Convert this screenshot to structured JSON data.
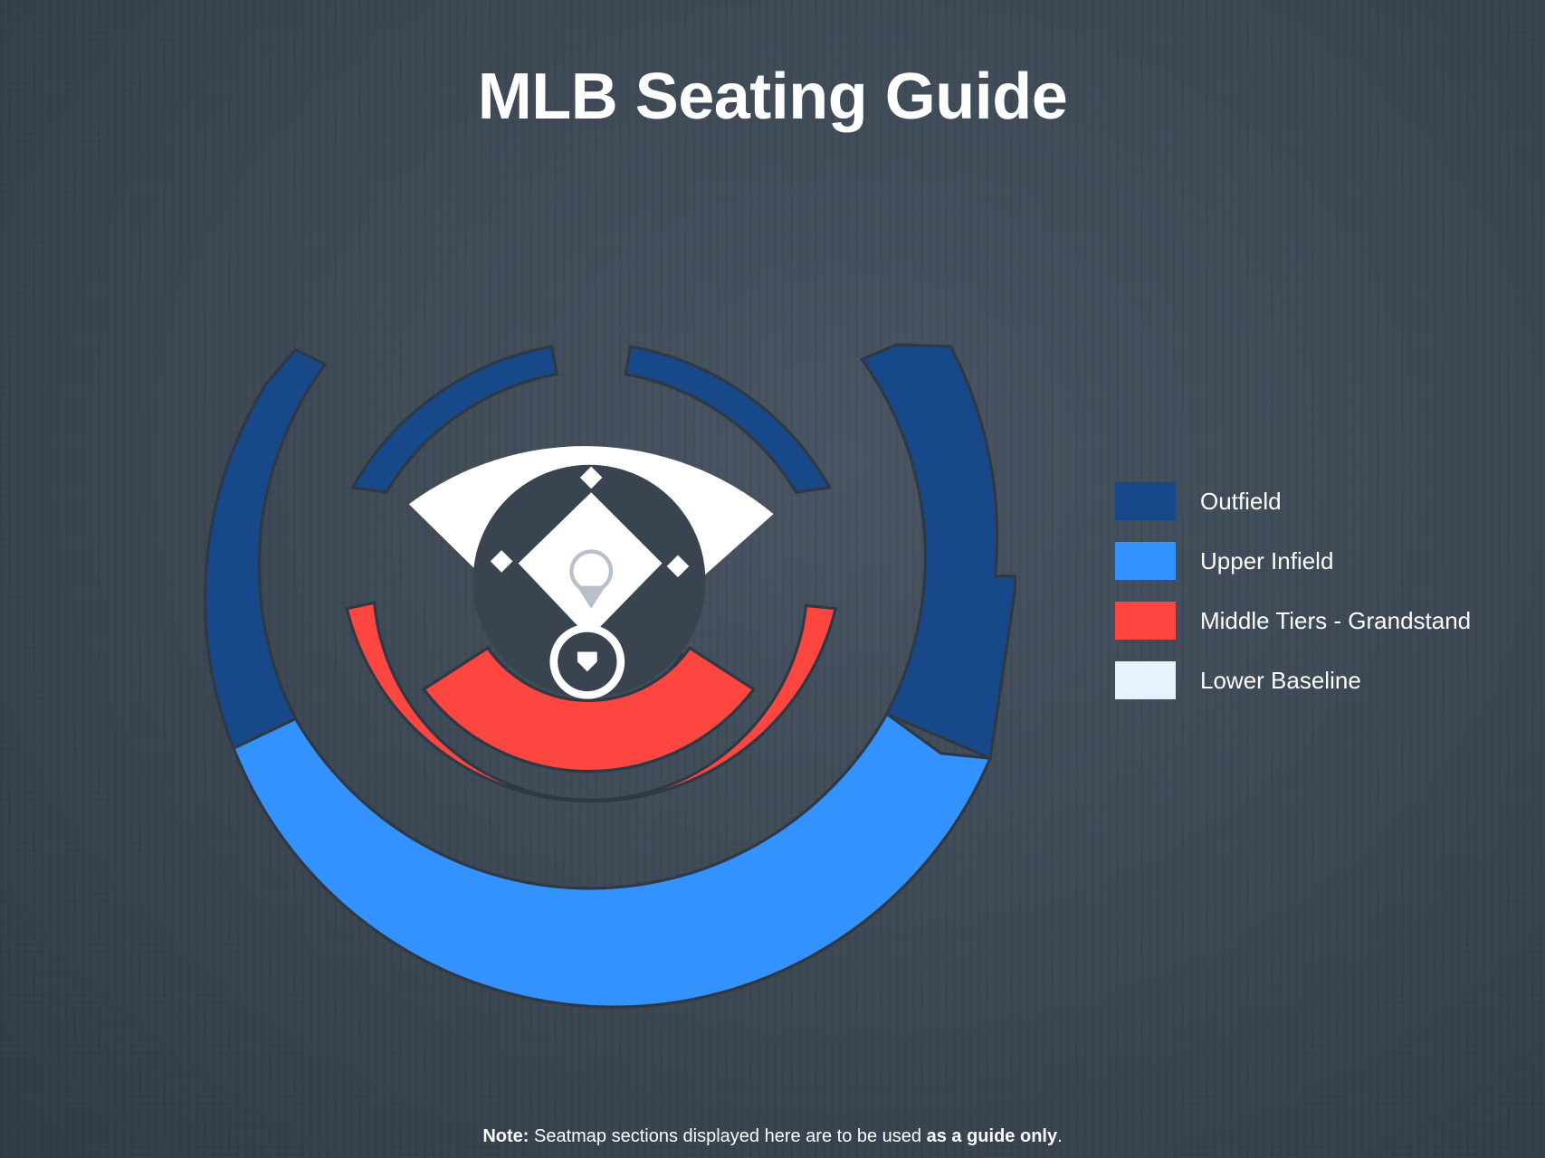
{
  "title": "MLB Seating Guide",
  "legend": [
    {
      "label": "Outfield",
      "color": "#17498a"
    },
    {
      "label": "Upper Infield",
      "color": "#3392fd"
    },
    {
      "label": "Middle Tiers - Grandstand",
      "color": "#fd4640"
    },
    {
      "label": "Lower Baseline",
      "color": "#e6f2fe"
    }
  ],
  "note": {
    "prefix": "Note:",
    "text": " Seatmap sections displayed here are to be used ",
    "emphasis": "as a guide only",
    "suffix": "."
  }
}
